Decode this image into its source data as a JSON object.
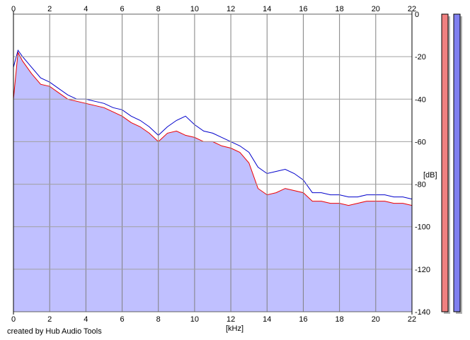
{
  "chart_data": {
    "type": "line",
    "title": "",
    "xlabel": "[kHz]",
    "ylabel": "[dB]",
    "xlim": [
      0,
      22
    ],
    "ylim": [
      -140,
      0
    ],
    "x_ticks": [
      "0",
      "2",
      "4",
      "6",
      "8",
      "10",
      "12",
      "14",
      "16",
      "18",
      "20",
      "22"
    ],
    "y_ticks": [
      "0",
      "-20",
      "-40",
      "-60",
      "-80",
      "-100",
      "-120",
      "-140"
    ],
    "grid": true,
    "series": [
      {
        "color": "#ee0000",
        "fill": "#c0c0ff",
        "x": [
          0,
          0.25,
          0.5,
          1,
          1.5,
          2,
          2.5,
          3,
          3.5,
          4,
          4.5,
          5,
          5.5,
          6,
          6.5,
          7,
          7.5,
          8,
          8.5,
          9,
          9.5,
          10,
          10.5,
          11,
          11.5,
          12,
          12.5,
          13,
          13.5,
          14,
          14.5,
          15,
          15.5,
          16,
          16.5,
          17,
          17.5,
          18,
          18.5,
          19,
          19.5,
          20,
          20.5,
          21,
          21.5,
          22
        ],
        "values": [
          -40,
          -18,
          -22,
          -28,
          -33,
          -34,
          -37,
          -40,
          -41,
          -42,
          -43,
          -44,
          -46,
          -48,
          -51,
          -53,
          -56,
          -60,
          -56,
          -55,
          -57,
          -58,
          -60,
          -60,
          -62,
          -63,
          -65,
          -70,
          -82,
          -85,
          -84,
          -82,
          -83,
          -84,
          -88,
          -88,
          -89,
          -89,
          -90,
          -89,
          -88,
          -88,
          -88,
          -89,
          -89,
          -90
        ]
      },
      {
        "color": "#0000cc",
        "x": [
          0,
          0.25,
          0.5,
          1,
          1.5,
          2,
          2.5,
          3,
          3.5,
          4,
          4.5,
          5,
          5.5,
          6,
          6.5,
          7,
          7.5,
          8,
          8.5,
          9,
          9.5,
          10,
          10.5,
          11,
          11.5,
          12,
          12.5,
          13,
          13.5,
          14,
          14.5,
          15,
          15.5,
          16,
          16.5,
          17,
          17.5,
          18,
          18.5,
          19,
          19.5,
          20,
          20.5,
          21,
          21.5,
          22
        ],
        "values": [
          -25,
          -17,
          -20,
          -25,
          -30,
          -32,
          -35,
          -38,
          -40,
          -40,
          -41,
          -42,
          -44,
          -45,
          -48,
          -50,
          -53,
          -57,
          -53,
          -50,
          -48,
          -52,
          -55,
          -56,
          -58,
          -60,
          -62,
          -65,
          -72,
          -75,
          -74,
          -73,
          -75,
          -78,
          -84,
          -84,
          -85,
          -85,
          -86,
          -86,
          -85,
          -85,
          -85,
          -86,
          -86,
          -87
        ]
      }
    ],
    "level_meters": {
      "left": {
        "color": "#f08080",
        "value": 1.0
      },
      "right": {
        "color": "#8080f0",
        "value": 1.0
      }
    }
  },
  "footer": {
    "credit": "created by Hub Audio Tools"
  }
}
